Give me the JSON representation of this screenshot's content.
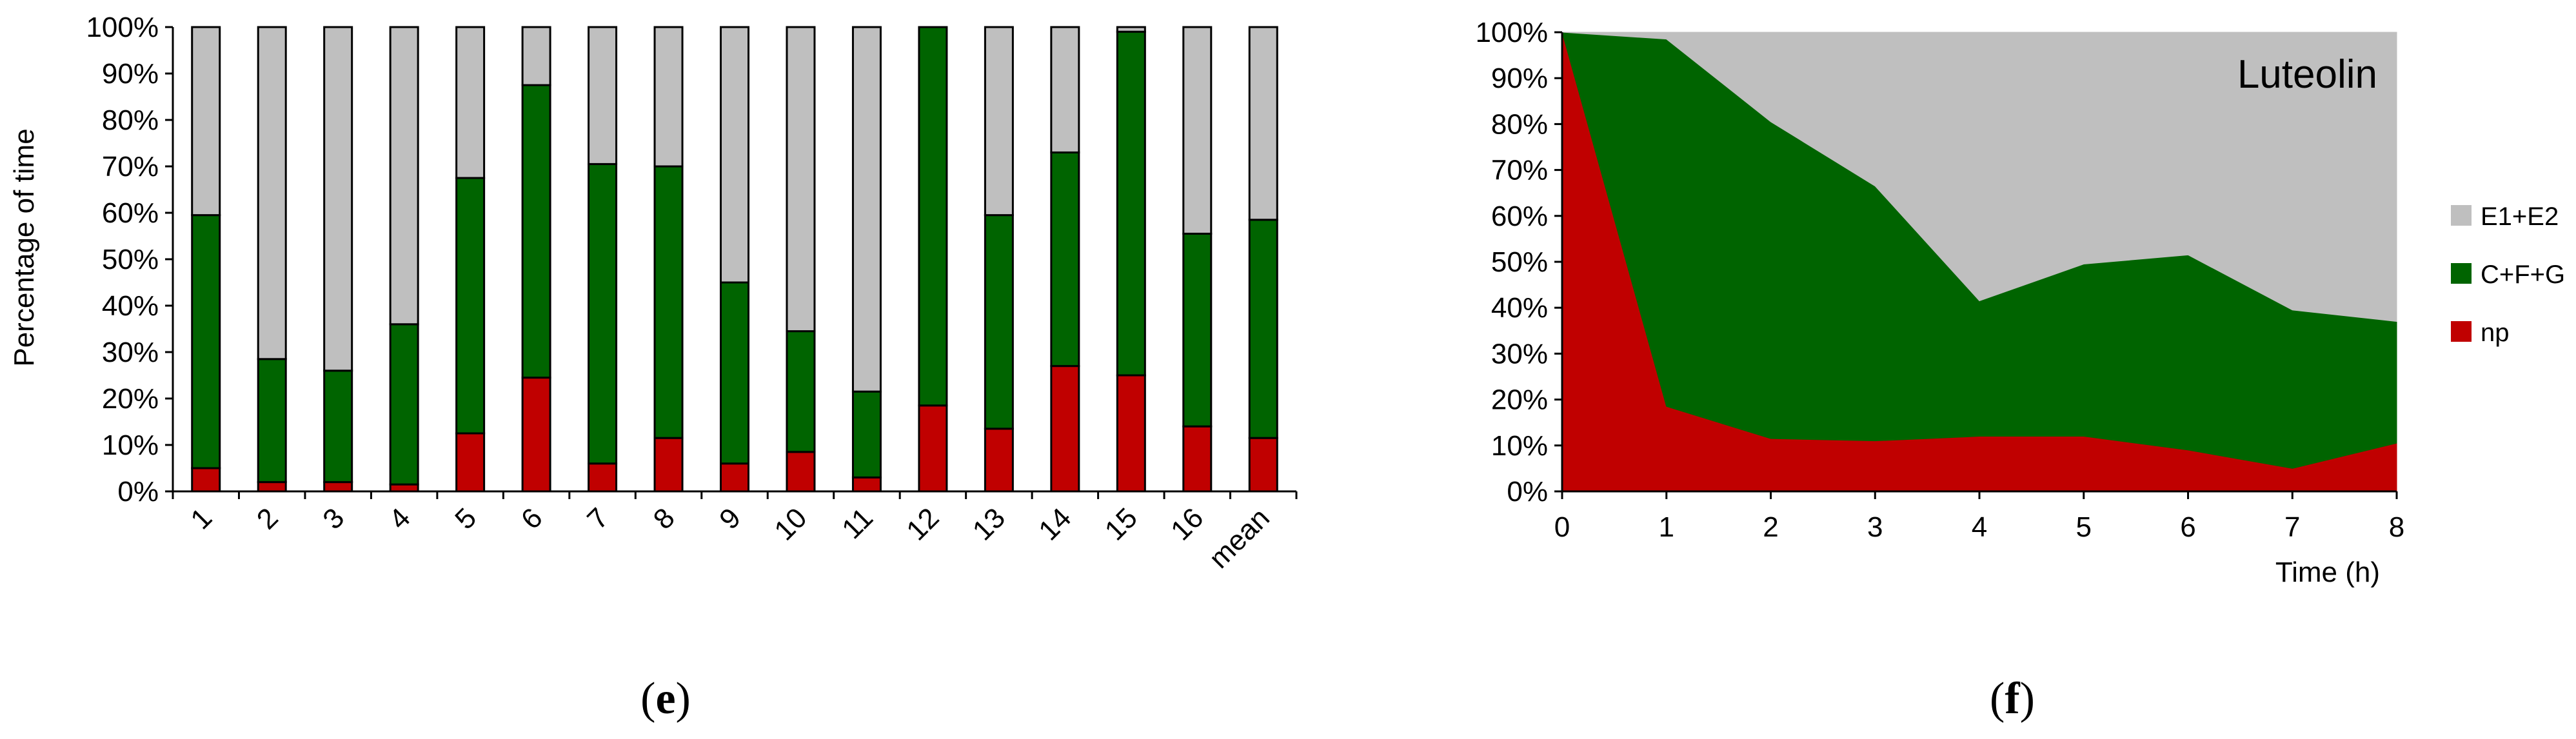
{
  "chart_data": [
    {
      "type": "bar",
      "stacked": true,
      "panel_label": "e",
      "ylabel": "Percentage of time",
      "categories": [
        "1",
        "2",
        "3",
        "4",
        "5",
        "6",
        "7",
        "8",
        "9",
        "10",
        "11",
        "12",
        "13",
        "14",
        "15",
        "16",
        "mean"
      ],
      "series": [
        {
          "name": "np",
          "color": "#c00000",
          "values": [
            5,
            2,
            2,
            1.5,
            12.5,
            24.5,
            6,
            11.5,
            6,
            8.5,
            3,
            18.5,
            13.5,
            27,
            25,
            14,
            11.5
          ]
        },
        {
          "name": "C+F+G",
          "color": "#006400",
          "values": [
            54.5,
            26.5,
            24,
            34.5,
            55,
            63,
            64.5,
            58.5,
            39,
            26,
            18.5,
            81.5,
            46,
            46,
            74,
            41.5,
            47
          ]
        },
        {
          "name": "E1+E2",
          "color": "#bfbfbf",
          "values": [
            40.5,
            71.5,
            74,
            64,
            32.5,
            12.5,
            29.5,
            30,
            55,
            65.5,
            78.5,
            0,
            40.5,
            27,
            1,
            44.5,
            41.5
          ]
        }
      ],
      "ylim": [
        0,
        100
      ],
      "yticks": [
        "0%",
        "10%",
        "20%",
        "30%",
        "40%",
        "50%",
        "60%",
        "70%",
        "80%",
        "90%",
        "100%"
      ],
      "grid": false,
      "legend": "none"
    },
    {
      "type": "area",
      "stacked": true,
      "panel_label": "f",
      "annotation": "Luteolin",
      "xlabel": "Time (h)",
      "x": [
        0,
        1,
        2,
        3,
        4,
        5,
        6,
        7,
        8
      ],
      "xticks": [
        "0",
        "1",
        "2",
        "3",
        "4",
        "5",
        "6",
        "7",
        "8"
      ],
      "xlim": [
        0,
        8
      ],
      "ylim": [
        0,
        100
      ],
      "yticks": [
        "0%",
        "10%",
        "20%",
        "30%",
        "40%",
        "50%",
        "60%",
        "70%",
        "80%",
        "90%",
        "100%"
      ],
      "series": [
        {
          "name": "np",
          "color": "#c00000",
          "values": [
            100,
            18.5,
            11.5,
            11,
            12,
            12,
            9,
            5,
            10.5
          ]
        },
        {
          "name": "C+F+G",
          "color": "#006400",
          "values": [
            0,
            80,
            69,
            55.5,
            29.5,
            37.5,
            42.5,
            34.5,
            26.5
          ]
        },
        {
          "name": "E1+E2",
          "color": "#bfbfbf",
          "values": [
            0,
            1.5,
            19.5,
            33.5,
            58.5,
            50.5,
            48.5,
            60.5,
            63
          ]
        }
      ],
      "legend_order": [
        "E1+E2",
        "C+F+G",
        "np"
      ],
      "legend": "right",
      "grid": false
    }
  ]
}
